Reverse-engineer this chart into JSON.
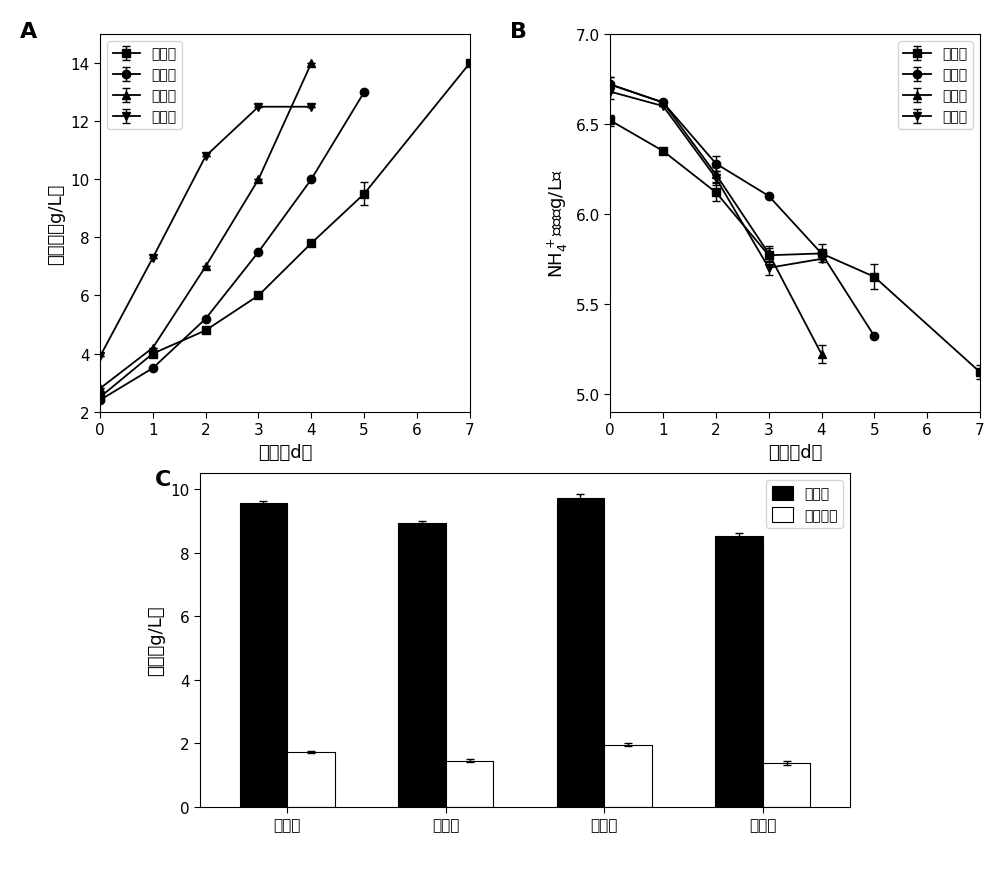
{
  "panel_A": {
    "label": "A",
    "xlabel": "时间（d）",
    "ylabel": "生物量（g/L）",
    "xlim": [
      0,
      7
    ],
    "ylim": [
      2,
      15
    ],
    "yticks": [
      2,
      4,
      6,
      8,
      10,
      12,
      14
    ],
    "xticks": [
      0,
      1,
      2,
      3,
      4,
      5,
      6,
      7
    ],
    "series": [
      {
        "label": "第一批",
        "x": [
          0,
          1,
          2,
          3,
          4,
          5,
          7
        ],
        "y": [
          2.5,
          4.0,
          4.8,
          6.0,
          7.8,
          9.5,
          14.0
        ],
        "yerr": [
          0,
          0,
          0,
          0,
          0,
          0.4,
          0
        ],
        "marker": "s"
      },
      {
        "label": "第二批",
        "x": [
          0,
          1,
          2,
          3,
          4,
          5
        ],
        "y": [
          2.4,
          3.5,
          5.2,
          7.5,
          10.0,
          13.0
        ],
        "yerr": [
          0,
          0,
          0,
          0,
          0,
          0
        ],
        "marker": "o"
      },
      {
        "label": "第三批",
        "x": [
          0,
          1,
          2,
          3,
          4
        ],
        "y": [
          2.8,
          4.2,
          7.0,
          10.0,
          14.0
        ],
        "yerr": [
          0,
          0,
          0,
          0,
          0
        ],
        "marker": "^"
      },
      {
        "label": "第四批",
        "x": [
          0,
          1,
          2,
          3,
          4
        ],
        "y": [
          3.9,
          7.3,
          10.8,
          12.5,
          12.5
        ],
        "yerr": [
          0,
          0,
          0,
          0,
          0
        ],
        "marker": "v"
      }
    ]
  },
  "panel_B": {
    "label": "B",
    "xlabel": "时间（d）",
    "ylabel": "NH₄⁺浓度（g/L）",
    "xlim": [
      0,
      7
    ],
    "ylim": [
      4.9,
      7.0
    ],
    "yticks": [
      5.0,
      5.5,
      6.0,
      6.5,
      7.0
    ],
    "xticks": [
      0,
      1,
      2,
      3,
      4,
      5,
      6,
      7
    ],
    "series": [
      {
        "label": "第一批",
        "x": [
          0,
          1,
          2,
          3,
          4,
          5,
          7
        ],
        "y": [
          6.52,
          6.35,
          6.12,
          5.77,
          5.78,
          5.65,
          5.12
        ],
        "yerr": [
          0.03,
          0,
          0.05,
          0.04,
          0.05,
          0.07,
          0.04
        ],
        "marker": "s"
      },
      {
        "label": "第二批",
        "x": [
          0,
          1,
          2,
          3,
          4,
          5
        ],
        "y": [
          6.72,
          6.62,
          6.28,
          6.1,
          5.78,
          5.32
        ],
        "yerr": [
          0.04,
          0,
          0.04,
          0,
          0,
          0
        ],
        "marker": "o"
      },
      {
        "label": "第三批",
        "x": [
          0,
          1,
          2,
          3,
          4
        ],
        "y": [
          6.72,
          6.62,
          6.22,
          5.78,
          5.22
        ],
        "yerr": [
          0.04,
          0,
          0.04,
          0.04,
          0.05
        ],
        "marker": "^"
      },
      {
        "label": "第四批",
        "x": [
          0,
          1,
          2,
          3,
          4
        ],
        "y": [
          6.68,
          6.6,
          6.2,
          5.7,
          5.75
        ],
        "yerr": [
          0.04,
          0,
          0.04,
          0.04,
          0
        ],
        "marker": "v"
      }
    ]
  },
  "panel_C": {
    "label": "C",
    "xlabel_categories": [
      "第一批",
      "第二批",
      "第三批",
      "第四批"
    ],
    "ylabel": "产量（g/L）",
    "ylim": [
      0,
      10.5
    ],
    "yticks": [
      0,
      2,
      4,
      6,
      8,
      10
    ],
    "bar_width": 0.3,
    "protein_label": "蛋白质",
    "protein_values": [
      9.55,
      8.92,
      9.72,
      8.52
    ],
    "protein_yerr": [
      0.06,
      0.06,
      0.12,
      0.1
    ],
    "phyco_label": "藻胆蛋白",
    "phyco_values": [
      1.72,
      1.45,
      1.95,
      1.38
    ],
    "phyco_yerr": [
      0.04,
      0.04,
      0.05,
      0.06
    ]
  }
}
